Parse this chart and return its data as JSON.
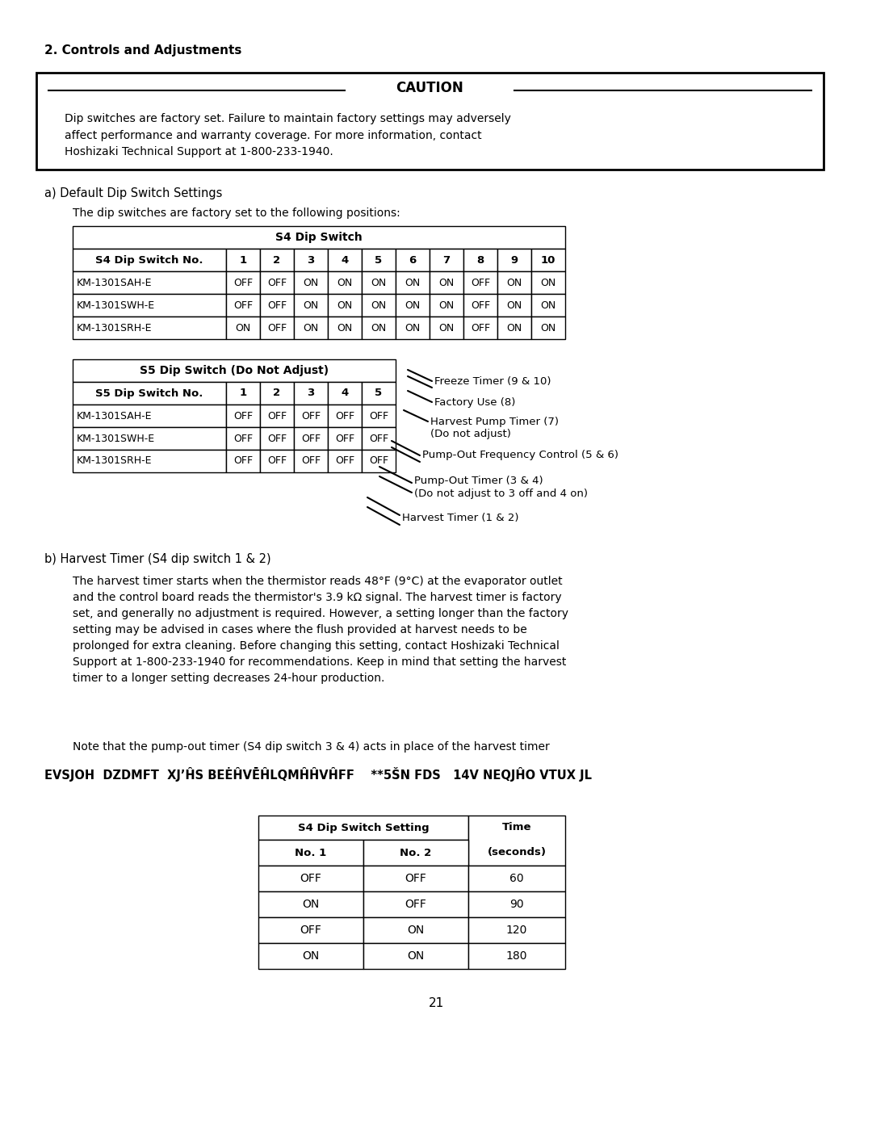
{
  "title_section": "2. Controls and Adjustments",
  "caution_title": "CAUTION",
  "caution_text": "Dip switches are factory set. Failure to maintain factory settings may adversely\naffect performance and warranty coverage. For more information, contact\nHoshizaki Technical Support at 1-800-233-1940.",
  "section_a_title": "a) Default Dip Switch Settings",
  "section_a_subtitle": "The dip switches are factory set to the following positions:",
  "s4_table_title": "S4 Dip Switch",
  "s4_header": [
    "S4 Dip Switch No.",
    "1",
    "2",
    "3",
    "4",
    "5",
    "6",
    "7",
    "8",
    "9",
    "10"
  ],
  "s4_rows": [
    [
      "KM-1301SAH-E",
      "OFF",
      "OFF",
      "ON",
      "ON",
      "ON",
      "ON",
      "ON",
      "OFF",
      "ON",
      "ON"
    ],
    [
      "KM-1301SWH-E",
      "OFF",
      "OFF",
      "ON",
      "ON",
      "ON",
      "ON",
      "ON",
      "OFF",
      "ON",
      "ON"
    ],
    [
      "KM-1301SRH-E",
      "ON",
      "OFF",
      "ON",
      "ON",
      "ON",
      "ON",
      "ON",
      "OFF",
      "ON",
      "ON"
    ]
  ],
  "s5_table_title": "S5 Dip Switch (Do Not Adjust)",
  "s5_header": [
    "S5 Dip Switch No.",
    "1",
    "2",
    "3",
    "4",
    "5"
  ],
  "s5_rows": [
    [
      "KM-1301SAH-E",
      "OFF",
      "OFF",
      "OFF",
      "OFF",
      "OFF"
    ],
    [
      "KM-1301SWH-E",
      "OFF",
      "OFF",
      "OFF",
      "OFF",
      "OFF"
    ],
    [
      "KM-1301SRH-E",
      "OFF",
      "OFF",
      "OFF",
      "OFF",
      "OFF"
    ]
  ],
  "diagram_labels": [
    "Freeze Timer (9 & 10)",
    "Factory Use (8)",
    "Harvest Pump Timer (7)\n(Do not adjust)",
    "Pump-Out Frequency Control (5 & 6)",
    "Pump-Out Timer (3 & 4)\n(Do not adjust to 3 off and 4 on)",
    "Harvest Timer (1 & 2)"
  ],
  "section_b_title": "b) Harvest Timer (S4 dip switch 1 & 2)",
  "section_b_text1": "The harvest timer starts when the thermistor reads 48°F (9°C) at the evaporator outlet\nand the control board reads the thermistor's 3.9 kΩ signal. The harvest timer is factory\nset, and generally no adjustment is required. However, a setting longer than the factory\nsetting may be advised in cases where the flush provided at harvest needs to be\nprolonged for extra cleaning. Before changing this setting, contact Hoshizaki Technical\nSupport at 1-800-233-1940 for recommendations. Keep in mind that setting the harvest\ntimer to a longer setting decreases 24-hour production.",
  "section_b_note": "Note that the pump-out timer (S4 dip switch 3 & 4) acts in place of the harvest timer",
  "section_b_garbled": "EVSJOH  DZDMFT  XJ’ĤS BEĖĤVĒĤLQMĤĤVĤFF    **5ŠN FDS   14V NEQJĤO VTUX JL",
  "harvest_table_header1": "S4 Dip Switch Setting",
  "harvest_table_header2": "Time",
  "harvest_table_subheader": [
    "No. 1",
    "No. 2",
    "(seconds)"
  ],
  "harvest_table_rows": [
    [
      "OFF",
      "OFF",
      "60"
    ],
    [
      "ON",
      "OFF",
      "90"
    ],
    [
      "OFF",
      "ON",
      "120"
    ],
    [
      "ON",
      "ON",
      "180"
    ]
  ],
  "page_number": "21",
  "bg_color": "#ffffff",
  "text_color": "#000000"
}
